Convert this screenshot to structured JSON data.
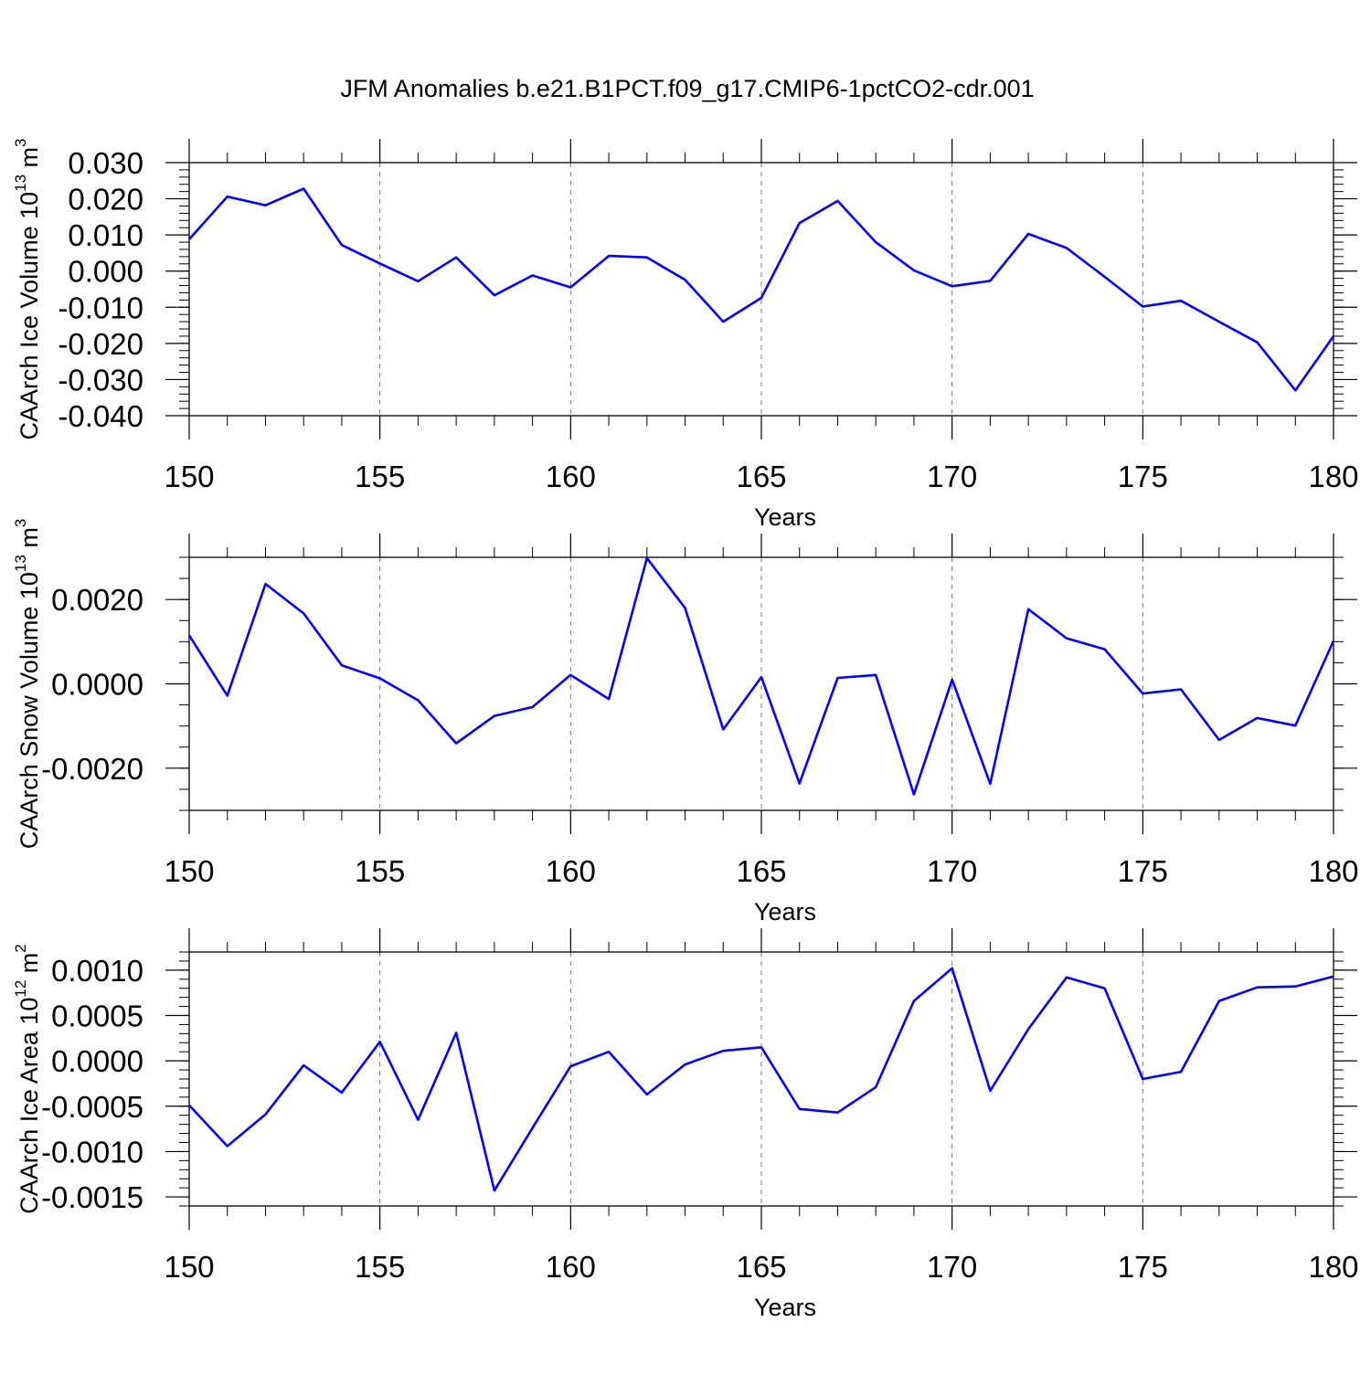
{
  "figure_title": "JFM Anomalies b.e21.B1PCT.f09_g17.CMIP6-1pctCO2-cdr.001",
  "series_color": "#0000ff",
  "chart_data": [
    {
      "type": "line",
      "title": "JFM Anomalies b.e21.B1PCT.f09_g17.CMIP6-1pctCO2-cdr.001",
      "xlabel": "Years",
      "ylabel": "CAArch Ice Volume 10",
      "ylabel_sup": "13",
      "ylabel_unit": " m",
      "ylabel_unit_sup": "3",
      "xlim": [
        150,
        180
      ],
      "ylim": [
        -0.04,
        0.03
      ],
      "xticks": [
        150,
        155,
        160,
        165,
        170,
        175,
        180
      ],
      "xtick_labels": [
        "150",
        "155",
        "160",
        "165",
        "170",
        "175",
        "180"
      ],
      "yticks": [
        -0.04,
        -0.03,
        -0.02,
        -0.01,
        0.0,
        0.01,
        0.02,
        0.03
      ],
      "ytick_labels": [
        "-0.040",
        "-0.030",
        "-0.020",
        "-0.010",
        "0.000",
        "0.010",
        "0.020",
        "0.030"
      ],
      "yminor_step": 0.002,
      "grid": "vertical-dashed",
      "x": [
        150,
        151,
        152,
        153,
        154,
        155,
        156,
        157,
        158,
        159,
        160,
        161,
        162,
        163,
        164,
        165,
        166,
        167,
        168,
        169,
        170,
        171,
        172,
        173,
        174,
        175,
        176,
        177,
        178,
        179,
        180
      ],
      "values": [
        0.0088,
        0.0206,
        0.0182,
        0.0228,
        0.0072,
        0.0021,
        -0.0028,
        0.0038,
        -0.0067,
        -0.0012,
        -0.0045,
        0.0042,
        0.0038,
        -0.0024,
        -0.014,
        -0.0074,
        0.0133,
        0.0194,
        0.008,
        0.0002,
        -0.0042,
        -0.0027,
        0.0103,
        0.0064,
        -0.0016,
        -0.0098,
        -0.0082,
        -0.014,
        -0.0197,
        -0.033,
        -0.018
      ]
    },
    {
      "type": "line",
      "xlabel": "Years",
      "ylabel": "CAArch Snow Volume 10",
      "ylabel_sup": "13",
      "ylabel_unit": " m",
      "ylabel_unit_sup": "3",
      "xlim": [
        150,
        180
      ],
      "ylim": [
        -0.003,
        0.003
      ],
      "xticks": [
        150,
        155,
        160,
        165,
        170,
        175,
        180
      ],
      "xtick_labels": [
        "150",
        "155",
        "160",
        "165",
        "170",
        "175",
        "180"
      ],
      "yticks": [
        -0.002,
        0.0,
        0.002
      ],
      "ytick_labels": [
        "-0.0020",
        "0.0000",
        "0.0020"
      ],
      "yminor_step": 0.0005,
      "grid": "vertical-dashed",
      "x": [
        150,
        151,
        152,
        153,
        154,
        155,
        156,
        157,
        158,
        159,
        160,
        161,
        162,
        163,
        164,
        165,
        166,
        167,
        168,
        169,
        170,
        171,
        172,
        173,
        174,
        175,
        176,
        177,
        178,
        179,
        180
      ],
      "values": [
        0.00115,
        -0.00028,
        0.00237,
        0.00167,
        0.00044,
        0.00013,
        -0.00039,
        -0.00141,
        -0.00076,
        -0.00055,
        0.00021,
        -0.00036,
        0.00298,
        0.0018,
        -0.00108,
        0.00016,
        -0.00236,
        0.00014,
        0.00021,
        -0.00262,
        0.0001,
        -0.00237,
        0.00177,
        0.00108,
        0.00082,
        -0.00023,
        -0.00013,
        -0.00133,
        -0.00081,
        -0.00099,
        0.00102
      ]
    },
    {
      "type": "line",
      "xlabel": "Years",
      "ylabel": "CAArch Ice Area 10",
      "ylabel_sup": "12",
      "ylabel_unit": " m",
      "ylabel_unit_sup": "2",
      "xlim": [
        150,
        180
      ],
      "ylim": [
        -0.0016,
        0.0012
      ],
      "xticks": [
        150,
        155,
        160,
        165,
        170,
        175,
        180
      ],
      "xtick_labels": [
        "150",
        "155",
        "160",
        "165",
        "170",
        "175",
        "180"
      ],
      "yticks": [
        -0.0015,
        -0.001,
        -0.0005,
        0.0,
        0.0005,
        0.001
      ],
      "ytick_labels": [
        "-0.0015",
        "-0.0010",
        "-0.0005",
        "0.0000",
        "0.0005",
        "0.0010"
      ],
      "yminor_step": 0.0001,
      "grid": "vertical-dashed",
      "x": [
        150,
        151,
        152,
        153,
        154,
        155,
        156,
        157,
        158,
        159,
        160,
        161,
        162,
        163,
        164,
        165,
        166,
        167,
        168,
        169,
        170,
        171,
        172,
        173,
        174,
        175,
        176,
        177,
        178,
        179,
        180
      ],
      "values": [
        -0.00049,
        -0.00094,
        -0.00059,
        -5e-05,
        -0.00035,
        0.00021,
        -0.00065,
        0.00031,
        -0.00143,
        -0.00074,
        -6e-05,
        0.0001,
        -0.00037,
        -4e-05,
        0.00011,
        0.00015,
        -0.00053,
        -0.00057,
        -0.00029,
        0.00066,
        0.00102,
        -0.00033,
        0.00035,
        0.00092,
        0.0008,
        -0.0002,
        -0.00012,
        0.00066,
        0.00081,
        0.00082,
        0.00093
      ]
    }
  ]
}
